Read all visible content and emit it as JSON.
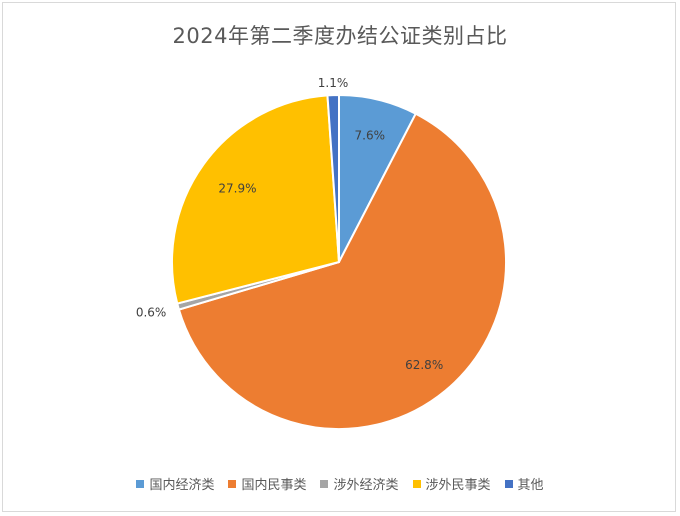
{
  "chart_data": {
    "type": "pie",
    "title": "2024年第二季度办结公证类别占比",
    "categories": [
      "国内经济类",
      "国内民事类",
      "涉外经济类",
      "涉外民事类",
      "其他"
    ],
    "values": [
      7.6,
      62.8,
      0.6,
      27.9,
      1.1
    ],
    "labels": [
      "7.6%",
      "62.8%",
      "0.6%",
      "27.9%",
      "1.1%"
    ],
    "colors": [
      "#5b9bd5",
      "#ed7d31",
      "#a5a5a5",
      "#ffc000",
      "#4472c4"
    ],
    "legend_position": "bottom",
    "start_angle_deg": 0,
    "direction": "clockwise"
  }
}
